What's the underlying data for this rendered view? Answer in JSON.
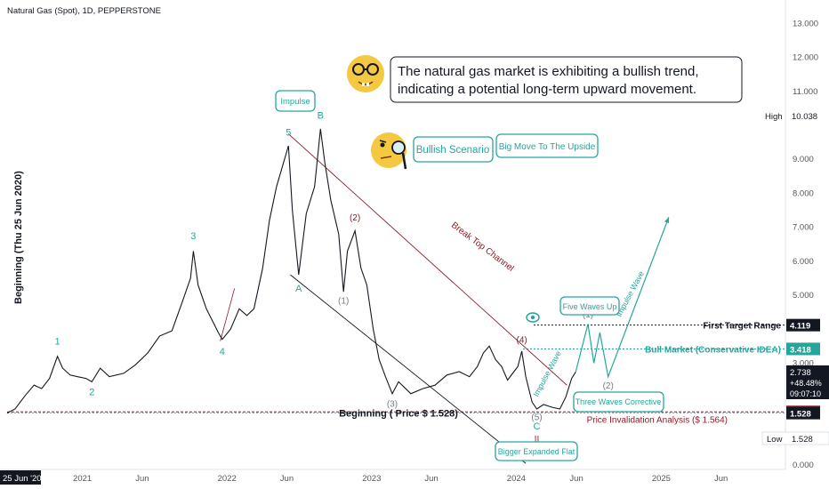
{
  "header": {
    "symbol_title": "Natural Gas (Spot), 1D, PEPPERSTONE"
  },
  "chart_data": {
    "type": "line",
    "title": "Natural Gas (Spot), 1D, PEPPERSTONE",
    "y_axis": {
      "ticks": [
        "13.000",
        "12.000",
        "11.000",
        "10.038",
        "9.000",
        "8.000",
        "7.000",
        "6.000",
        "5.000",
        "3.000",
        "0.000"
      ],
      "ylim": [
        0,
        13.3
      ]
    },
    "x_axis": {
      "ticks": [
        "25 Jun '20",
        "2021",
        "Jun",
        "2022",
        "Jun",
        "2023",
        "Jun",
        "2024",
        "Jun",
        "2025",
        "Jun"
      ]
    },
    "vertical_label": "Beginning (Thu 25 Jun 2020)",
    "price_series": {
      "name": "",
      "points": [
        [
          "2020-06-25",
          1.53
        ],
        [
          "2020-07-15",
          1.65
        ],
        [
          "2020-08-10",
          2.05
        ],
        [
          "2020-09-01",
          2.35
        ],
        [
          "2020-09-20",
          2.25
        ],
        [
          "2020-10-10",
          2.55
        ],
        [
          "2020-10-30",
          3.2
        ],
        [
          "2020-11-12",
          2.85
        ],
        [
          "2020-12-01",
          2.65
        ],
        [
          "2020-12-20",
          2.6
        ],
        [
          "2021-01-10",
          2.55
        ],
        [
          "2021-01-25",
          2.45
        ],
        [
          "2021-02-15",
          2.85
        ],
        [
          "2021-03-10",
          2.6
        ],
        [
          "2021-04-15",
          2.7
        ],
        [
          "2021-05-15",
          2.95
        ],
        [
          "2021-06-15",
          3.3
        ],
        [
          "2021-07-15",
          3.8
        ],
        [
          "2021-08-15",
          3.95
        ],
        [
          "2021-09-10",
          4.8
        ],
        [
          "2021-10-01",
          5.5
        ],
        [
          "2021-10-08",
          6.3
        ],
        [
          "2021-10-20",
          5.3
        ],
        [
          "2021-11-10",
          4.6
        ],
        [
          "2021-12-10",
          3.9
        ],
        [
          "2021-12-20",
          3.7
        ],
        [
          "2022-01-10",
          4.0
        ],
        [
          "2022-02-01",
          4.6
        ],
        [
          "2022-02-20",
          4.4
        ],
        [
          "2022-03-10",
          4.6
        ],
        [
          "2022-04-01",
          5.8
        ],
        [
          "2022-04-18",
          7.2
        ],
        [
          "2022-05-06",
          8.2
        ],
        [
          "2022-06-05",
          9.4
        ],
        [
          "2022-06-15",
          7.5
        ],
        [
          "2022-07-01",
          5.6
        ],
        [
          "2022-07-20",
          7.4
        ],
        [
          "2022-08-10",
          8.2
        ],
        [
          "2022-08-25",
          9.9
        ],
        [
          "2022-09-05",
          8.9
        ],
        [
          "2022-09-20",
          7.8
        ],
        [
          "2022-10-10",
          6.8
        ],
        [
          "2022-10-22",
          5.1
        ],
        [
          "2022-11-01",
          6.3
        ],
        [
          "2022-11-20",
          6.9
        ],
        [
          "2022-12-05",
          5.8
        ],
        [
          "2022-12-20",
          5.3
        ],
        [
          "2023-01-05",
          4.0
        ],
        [
          "2023-01-20",
          3.1
        ],
        [
          "2023-02-05",
          2.6
        ],
        [
          "2023-02-22",
          2.1
        ],
        [
          "2023-03-10",
          2.45
        ],
        [
          "2023-04-10",
          2.1
        ],
        [
          "2023-05-10",
          2.25
        ],
        [
          "2023-06-10",
          2.35
        ],
        [
          "2023-07-10",
          2.65
        ],
        [
          "2023-08-10",
          2.75
        ],
        [
          "2023-09-05",
          2.6
        ],
        [
          "2023-09-25",
          2.9
        ],
        [
          "2023-10-10",
          3.3
        ],
        [
          "2023-10-25",
          3.5
        ],
        [
          "2023-11-10",
          3.1
        ],
        [
          "2023-11-25",
          2.9
        ],
        [
          "2023-12-10",
          2.5
        ],
        [
          "2024-01-05",
          2.9
        ],
        [
          "2024-01-15",
          3.35
        ],
        [
          "2024-01-25",
          2.6
        ],
        [
          "2024-02-10",
          1.85
        ],
        [
          "2024-02-22",
          1.65
        ],
        [
          "2024-03-10",
          1.78
        ],
        [
          "2024-04-01",
          1.7
        ],
        [
          "2024-04-20",
          1.65
        ],
        [
          "2024-05-05",
          2.0
        ],
        [
          "2024-05-20",
          2.55
        ],
        [
          "2024-05-30",
          2.738
        ]
      ]
    },
    "projection_path": [
      [
        "2024-05-30",
        2.738
      ],
      [
        "2024-06-30",
        4.15
      ],
      [
        "2024-07-15",
        3.0
      ],
      [
        "2024-07-30",
        3.9
      ],
      [
        "2024-08-20",
        2.6
      ],
      [
        "2025-01-20",
        7.3
      ]
    ],
    "price_labels": [
      {
        "value": 4.119,
        "text": "4.119",
        "color": "#131722"
      },
      {
        "value": 3.418,
        "text": "3.418",
        "color": "#26a69a"
      },
      {
        "value": 1.564,
        "text": "1.564",
        "color": "#8d1c27"
      },
      {
        "value": 1.528,
        "text": "1.528",
        "color": "#131722"
      }
    ],
    "current_price": {
      "price": "2.738",
      "change": "+48.48%",
      "countdown": "09:07:10"
    },
    "high_label": {
      "text": "High",
      "value": "10.038"
    },
    "low_label": {
      "text": "Low",
      "value": "1.528"
    },
    "levels": {
      "first_target": {
        "label": "First Target Range",
        "value": 4.119
      },
      "bull_market": {
        "label": "Bull Market (Conservative IDEA)",
        "value": 3.418
      },
      "invalidation": {
        "label": "Price Invalidation Analysis ($ 1.564)",
        "value": 1.564
      },
      "beginning": {
        "label": "Beginning ( Price $ 1.528)",
        "value": 1.528
      }
    },
    "wave_labels": {
      "w1": "1",
      "w2": "2",
      "w3": "3",
      "w4": "4",
      "w5": "5",
      "a": "A",
      "b": "B",
      "c": "C",
      "p1": "(1)",
      "p2": "(2)",
      "p3": "(3)",
      "p4": "(4)",
      "p5": "(5)",
      "f1": "(1)",
      "f2": "(2)",
      "ii": "||"
    },
    "annotations": {
      "channel": "Break Top Channel",
      "impulse_wave_1": "Impulse Wave",
      "impulse_wave_2": "Impulse Wave",
      "impulse_callout": "Impulse",
      "five_waves": "Five Waves Up",
      "three_waves": "Three Waves Corrective",
      "bigger_flat": "Bigger Expanded Flat",
      "bullish_scenario": "Bullish Scenario",
      "big_move": "Big Move To The Upside",
      "comment_line1": "The natural gas market is exhibiting a bullish trend,",
      "comment_line2": "indicating a potential long-term upward movement."
    },
    "grid": false,
    "colors": {
      "teal": "#26a69a",
      "dark_red": "#8d1c27",
      "candles": "#131722",
      "axis_text": "#555555"
    }
  }
}
